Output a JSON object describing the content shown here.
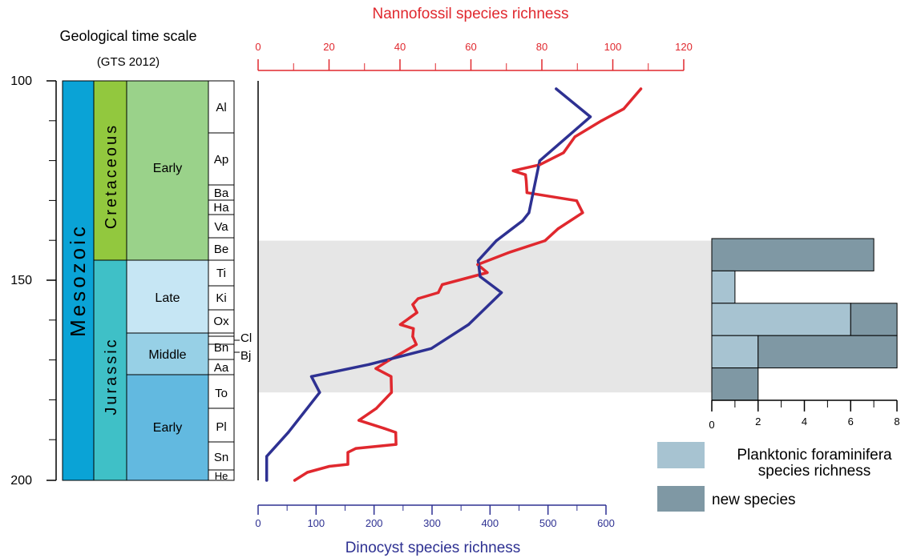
{
  "left_panel": {
    "title": "Geological time scale",
    "subtitle": "(GTS 2012)",
    "age_ticks": [
      "100",
      "150",
      "200"
    ],
    "era": "Mesozoic",
    "periods": [
      "Cretaceous",
      "Jurassic"
    ],
    "epochs": [
      "Early",
      "Late",
      "Middle",
      "Early"
    ],
    "stages": [
      "Al",
      "Ap",
      "Ba",
      "Ha",
      "Va",
      "Be",
      "Ti",
      "Ki",
      "Ox",
      "Bn",
      "Aa",
      "To",
      "Pl",
      "Sn",
      "He"
    ],
    "outside_stage_labels": [
      "Cl",
      "Bj"
    ]
  },
  "colors": {
    "era": "#0aa3d6",
    "cretaceous": "#92c83e",
    "jurassic": "#3fc0c7",
    "early_cretaceous": "#9ad28a",
    "late_jurassic": "#c6e6f4",
    "middle_jurassic": "#97d0e6",
    "early_jurassic": "#62b9e0",
    "nannofossil": "#e0282e",
    "dinocyst": "#2e3192",
    "highlight_band": "#e6e6e6",
    "planktonic": "#a7c3d1",
    "new_species": "#7f98a4"
  },
  "chart_data": [
    {
      "type": "line",
      "top_axis_title": "Nannofossil species richness",
      "bottom_axis_title": "Dinocyst species richness",
      "y_axis": "age (Ma)",
      "ylim": [
        100,
        200
      ],
      "y_inverted": true,
      "highlighted_interval": [
        140,
        178
      ],
      "axes": {
        "nannofossil": {
          "range": [
            0,
            120
          ],
          "ticks": [
            "0",
            "20",
            "40",
            "60",
            "80",
            "100",
            "120"
          ]
        },
        "dinocyst": {
          "range": [
            0,
            600
          ],
          "ticks": [
            "0",
            "100",
            "200",
            "300",
            "400",
            "500",
            "600"
          ]
        }
      },
      "series": [
        {
          "name": "Nannofossil species richness",
          "axis": "nannofossil",
          "points": [
            [
              107.9,
              102
            ],
            [
              103.1,
              107
            ],
            [
              96.8,
              110
            ],
            [
              89.3,
              114
            ],
            [
              86.1,
              118
            ],
            [
              79.4,
              121
            ],
            [
              71.9,
              122.5
            ],
            [
              75.4,
              123.5
            ],
            [
              75.6,
              125
            ],
            [
              75.8,
              128
            ],
            [
              89.8,
              130
            ],
            [
              91.5,
              133
            ],
            [
              84.6,
              137
            ],
            [
              80.9,
              140
            ],
            [
              70.6,
              143
            ],
            [
              61.9,
              146
            ],
            [
              64.6,
              148
            ],
            [
              51.9,
              151
            ],
            [
              50.8,
              153
            ],
            [
              45.1,
              154.5
            ],
            [
              43.6,
              156
            ],
            [
              44.8,
              158
            ],
            [
              40.1,
              161
            ],
            [
              43.8,
              162
            ],
            [
              43.6,
              164
            ],
            [
              44.6,
              166
            ],
            [
              36.8,
              170
            ],
            [
              33.2,
              172
            ],
            [
              37.5,
              174
            ],
            [
              37.6,
              178
            ],
            [
              33.3,
              182
            ],
            [
              28.4,
              185
            ],
            [
              35.5,
              187
            ],
            [
              38.8,
              188
            ],
            [
              38.9,
              191
            ],
            [
              27.6,
              192
            ],
            [
              25.3,
              193
            ],
            [
              25.3,
              196
            ],
            [
              20.1,
              196.5
            ],
            [
              13.9,
              198
            ],
            [
              10.3,
              200
            ]
          ]
        },
        {
          "name": "Dinocyst species richness",
          "axis": "dinocyst",
          "points": [
            [
              514.1,
              102
            ],
            [
              573.0,
              109
            ],
            [
              485.6,
              120
            ],
            [
              467.2,
              133
            ],
            [
              456.4,
              135
            ],
            [
              411.0,
              140
            ],
            [
              379.5,
              145
            ],
            [
              383.0,
              149
            ],
            [
              419.7,
              153
            ],
            [
              363.0,
              161
            ],
            [
              298.8,
              167
            ],
            [
              191.1,
              171
            ],
            [
              91.9,
              174
            ],
            [
              106.2,
              178
            ],
            [
              52.1,
              188
            ],
            [
              14.8,
              194
            ],
            [
              14.8,
              200
            ]
          ]
        }
      ]
    },
    {
      "type": "bar",
      "orientation": "horizontal",
      "xlim": [
        0,
        8
      ],
      "x_ticks": [
        "0",
        "2",
        "4",
        "6",
        "8"
      ],
      "legend": [
        {
          "label": "Planktonic foraminifera species richness",
          "lines": [
            "Planktonic foraminifera",
            "species richness"
          ]
        },
        {
          "label": "new species",
          "lines": [
            "new species"
          ]
        }
      ],
      "series": [
        {
          "name": "Planktonic foraminifera species richness",
          "values": [
            0,
            1,
            6,
            2,
            0
          ]
        },
        {
          "name": "new species",
          "values": [
            7,
            0,
            2,
            6,
            2
          ]
        }
      ]
    }
  ]
}
